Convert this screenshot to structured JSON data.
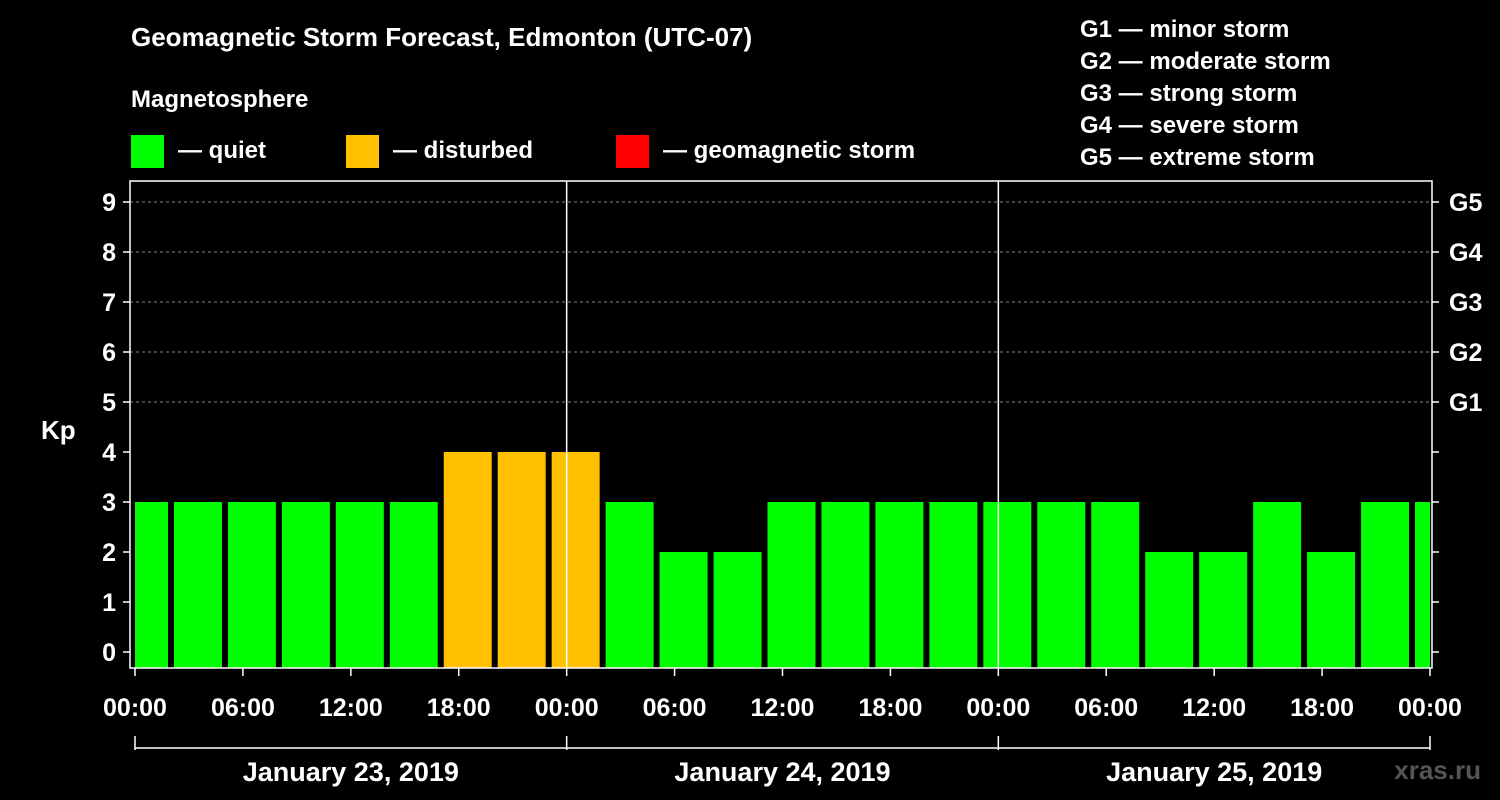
{
  "header": {
    "title": "Geomagnetic Storm Forecast, Edmonton (UTC-07)",
    "subtitle": "Magnetosphere"
  },
  "legend": {
    "items": [
      {
        "label": "— quiet",
        "color": "#00ff00"
      },
      {
        "label": "— disturbed",
        "color": "#ffc000"
      },
      {
        "label": "— geomagnetic storm",
        "color": "#ff0000"
      }
    ]
  },
  "storm_scale": [
    "G1 — minor storm",
    "G2 — moderate storm",
    "G3 — strong storm",
    "G4 — severe storm",
    "G5 — extreme storm"
  ],
  "watermark": "xras.ru",
  "chart_data": {
    "type": "bar",
    "title": "Geomagnetic Storm Forecast, Edmonton (UTC-07)",
    "ylabel": "Kp",
    "ylim": [
      0,
      9
    ],
    "yticks": [
      "0",
      "1",
      "2",
      "3",
      "4",
      "5",
      "6",
      "7",
      "8",
      "9"
    ],
    "right_axis_labels": [
      {
        "kp": 5,
        "label": "G1"
      },
      {
        "kp": 6,
        "label": "G2"
      },
      {
        "kp": 7,
        "label": "G3"
      },
      {
        "kp": 8,
        "label": "G4"
      },
      {
        "kp": 9,
        "label": "G5"
      }
    ],
    "x_range_hours": [
      0,
      72
    ],
    "x_tick_labels": [
      "00:00",
      "06:00",
      "12:00",
      "18:00",
      "00:00",
      "06:00",
      "12:00",
      "18:00",
      "00:00",
      "06:00",
      "12:00",
      "18:00",
      "00:00"
    ],
    "day_separators_hours": [
      24,
      48
    ],
    "days": [
      "January 23, 2019",
      "January 24, 2019",
      "January 25, 2019"
    ],
    "colors": {
      "quiet": "#00ff00",
      "disturbed": "#ffc000",
      "storm": "#ff0000"
    },
    "bars": [
      {
        "start": 0,
        "end": 2,
        "kp": 3
      },
      {
        "start": 2,
        "end": 5,
        "kp": 3
      },
      {
        "start": 5,
        "end": 8,
        "kp": 3
      },
      {
        "start": 8,
        "end": 11,
        "kp": 3
      },
      {
        "start": 11,
        "end": 14,
        "kp": 3
      },
      {
        "start": 14,
        "end": 17,
        "kp": 3
      },
      {
        "start": 17,
        "end": 20,
        "kp": 4
      },
      {
        "start": 20,
        "end": 23,
        "kp": 4
      },
      {
        "start": 23,
        "end": 26,
        "kp": 4
      },
      {
        "start": 26,
        "end": 29,
        "kp": 3
      },
      {
        "start": 29,
        "end": 32,
        "kp": 2
      },
      {
        "start": 32,
        "end": 35,
        "kp": 2
      },
      {
        "start": 35,
        "end": 38,
        "kp": 3
      },
      {
        "start": 38,
        "end": 41,
        "kp": 3
      },
      {
        "start": 41,
        "end": 44,
        "kp": 3
      },
      {
        "start": 44,
        "end": 47,
        "kp": 3
      },
      {
        "start": 47,
        "end": 50,
        "kp": 3
      },
      {
        "start": 50,
        "end": 53,
        "kp": 3
      },
      {
        "start": 53,
        "end": 56,
        "kp": 3
      },
      {
        "start": 56,
        "end": 59,
        "kp": 2
      },
      {
        "start": 59,
        "end": 62,
        "kp": 2
      },
      {
        "start": 62,
        "end": 65,
        "kp": 3
      },
      {
        "start": 65,
        "end": 68,
        "kp": 2
      },
      {
        "start": 68,
        "end": 71,
        "kp": 3
      },
      {
        "start": 71,
        "end": 72,
        "kp": 3
      }
    ]
  }
}
